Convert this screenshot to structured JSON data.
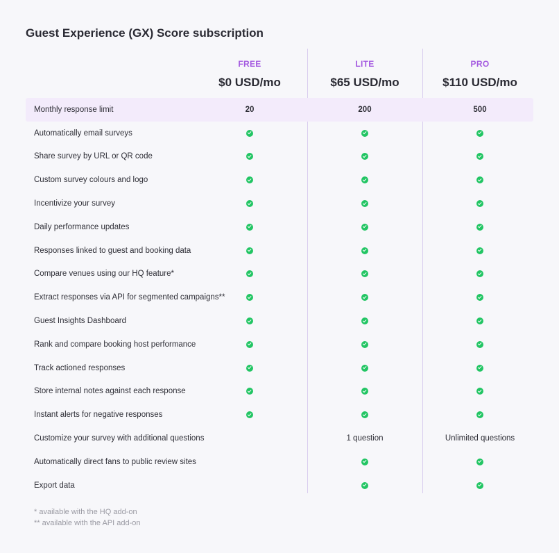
{
  "title": "Guest Experience (GX) Score subscription",
  "plans": [
    {
      "name": "FREE",
      "price": "$0 USD/mo"
    },
    {
      "name": "LITE",
      "price": "$65 USD/mo"
    },
    {
      "name": "PRO",
      "price": "$110 USD/mo"
    }
  ],
  "rows": [
    {
      "label": "Monthly response limit",
      "highlight": true,
      "bold": true,
      "cells": [
        "20",
        "200",
        "500"
      ]
    },
    {
      "label": "Automatically email surveys",
      "cells": [
        true,
        true,
        true
      ]
    },
    {
      "label": "Share survey by URL or QR code",
      "cells": [
        true,
        true,
        true
      ]
    },
    {
      "label": "Custom survey colours and logo",
      "cells": [
        true,
        true,
        true
      ]
    },
    {
      "label": "Incentivize your survey",
      "cells": [
        true,
        true,
        true
      ]
    },
    {
      "label": "Daily performance updates",
      "cells": [
        true,
        true,
        true
      ]
    },
    {
      "label": "Responses linked to guest and booking data",
      "cells": [
        true,
        true,
        true
      ]
    },
    {
      "label": "Compare venues using our HQ feature*",
      "cells": [
        true,
        true,
        true
      ]
    },
    {
      "label": "Extract responses via API for segmented campaigns**",
      "cells": [
        true,
        true,
        true
      ]
    },
    {
      "label": "Guest Insights Dashboard",
      "cells": [
        true,
        true,
        true
      ]
    },
    {
      "label": "Rank and compare booking host performance",
      "cells": [
        true,
        true,
        true
      ]
    },
    {
      "label": "Track actioned responses",
      "cells": [
        true,
        true,
        true
      ]
    },
    {
      "label": "Store internal notes against each response",
      "cells": [
        true,
        true,
        true
      ]
    },
    {
      "label": "Instant alerts for negative responses",
      "cells": [
        true,
        true,
        true
      ]
    },
    {
      "label": "Customize your survey with additional questions",
      "cells": [
        false,
        "1 question",
        "Unlimited questions"
      ]
    },
    {
      "label": "Automatically direct fans to public review sites",
      "cells": [
        false,
        true,
        true
      ]
    },
    {
      "label": "Export data",
      "cells": [
        false,
        true,
        true
      ]
    }
  ],
  "footnotes": [
    "* available with the HQ add-on",
    "** available with the API add-on"
  ],
  "colors": {
    "accent": "#a45ae0",
    "check": "#22c563",
    "highlight_row": "#f3ebfb",
    "background": "#f7f7fa"
  },
  "icons": {
    "included": "check-circle-icon"
  }
}
